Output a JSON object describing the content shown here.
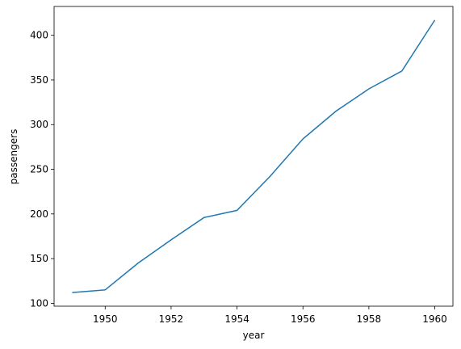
{
  "chart_data": {
    "type": "line",
    "x_label": "year",
    "y_label": "passengers",
    "x": [
      1949,
      1950,
      1951,
      1952,
      1953,
      1954,
      1955,
      1956,
      1957,
      1958,
      1959,
      1960
    ],
    "series": [
      {
        "name": "passengers",
        "color": "#1f77b4",
        "values": [
          112,
          115,
          145,
          171,
          196,
          204,
          242,
          284,
          315,
          340,
          360,
          417
        ]
      }
    ],
    "xlim": [
      1948.45,
      1960.55
    ],
    "xticks": [
      1950,
      1952,
      1954,
      1956,
      1958,
      1960
    ],
    "ylim": [
      96.75,
      432.25
    ],
    "yticks": [
      100,
      150,
      200,
      250,
      300,
      350,
      400
    ]
  }
}
